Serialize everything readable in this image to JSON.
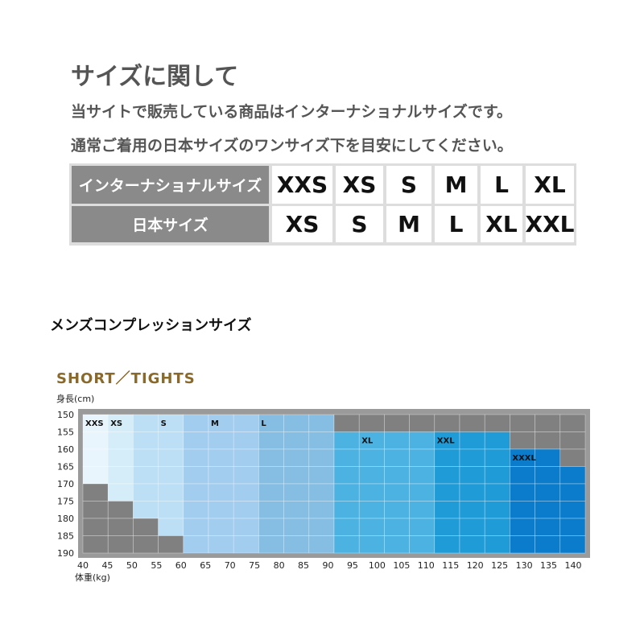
{
  "header": {
    "title": "サイズに関して",
    "line1": "当サイトで販売している商品はインターナショナルサイズです。",
    "line2": "通常ご着用の日本サイズのワンサイズ下を目安にしてください。"
  },
  "size_table": {
    "rows": [
      {
        "label": "インターナショナルサイズ",
        "sizes": [
          "XXS",
          "XS",
          "S",
          "M",
          "L",
          "XL"
        ]
      },
      {
        "label": "日本サイズ",
        "sizes": [
          "XS",
          "S",
          "M",
          "L",
          "XL",
          "XXL"
        ]
      }
    ]
  },
  "section_title": "メンズコンプレッションサイズ",
  "chart": {
    "title": "SHORT／TIGHTS",
    "y_label": "身長(cm)",
    "x_label": "体重(kg)",
    "y_ticks": [
      150,
      155,
      160,
      165,
      170,
      175,
      180,
      185,
      190
    ],
    "x_ticks": [
      40,
      45,
      50,
      55,
      60,
      65,
      70,
      75,
      80,
      85,
      90,
      95,
      100,
      105,
      110,
      115,
      120,
      125,
      130,
      135,
      140
    ],
    "size_labels": [
      "XXS",
      "XS",
      "S",
      "M",
      "L",
      "XL",
      "XXL",
      "XXXL"
    ]
  }
}
